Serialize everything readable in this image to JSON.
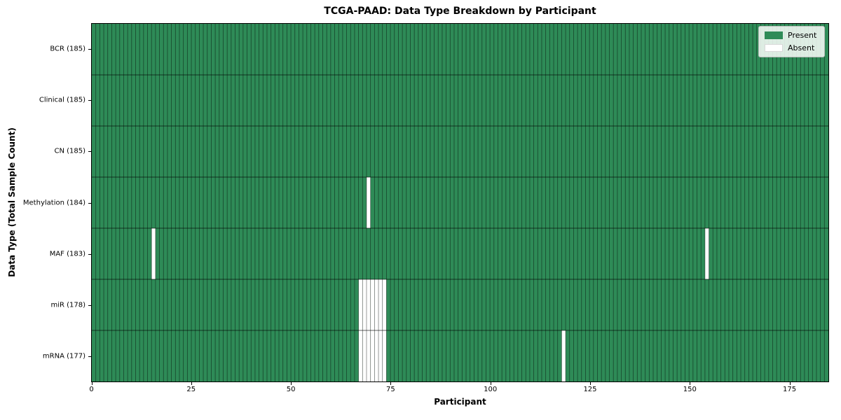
{
  "chart_data": {
    "type": "heatmap",
    "title": "TCGA-PAAD: Data Type Breakdown by Participant",
    "xlabel": "Participant",
    "ylabel": "Data Type (Total Sample Count)",
    "n_participants": 185,
    "x_range": [
      0,
      185
    ],
    "x_ticks": [
      0,
      25,
      50,
      75,
      100,
      125,
      150,
      175
    ],
    "grid": "cell-edges",
    "rows": [
      {
        "label": "BCR (185)",
        "data_type": "BCR",
        "present_count": 185,
        "absent_participants": []
      },
      {
        "label": "Clinical (185)",
        "data_type": "Clinical",
        "present_count": 185,
        "absent_participants": []
      },
      {
        "label": "CN (185)",
        "data_type": "CN",
        "present_count": 185,
        "absent_participants": []
      },
      {
        "label": "Methylation (184)",
        "data_type": "Methylation",
        "present_count": 184,
        "absent_participants": [
          69
        ]
      },
      {
        "label": "MAF (183)",
        "data_type": "MAF",
        "present_count": 183,
        "absent_participants": [
          15,
          154
        ]
      },
      {
        "label": "miR (178)",
        "data_type": "miR",
        "present_count": 178,
        "absent_participants": [
          67,
          68,
          69,
          70,
          71,
          72,
          73
        ]
      },
      {
        "label": "mRNA (177)",
        "data_type": "mRNA",
        "present_count": 177,
        "absent_participants": [
          67,
          68,
          69,
          70,
          71,
          72,
          73,
          118
        ]
      }
    ],
    "legend": {
      "position": "upper right",
      "entries": [
        {
          "label": "Present",
          "color_key": "present"
        },
        {
          "label": "Absent",
          "color_key": "absent"
        }
      ]
    }
  },
  "colors": {
    "present": "#2e8b57",
    "absent": "#ffffff",
    "cell_edge": "rgba(0,0,0,0.50)",
    "row_divider": "rgba(0,0,0,0.62)",
    "plot_border": "#000000",
    "tick": "#000000",
    "text": "#000000",
    "legend_bg": "rgba(252,254,252,0.85)",
    "legend_border": "#b9bcb9"
  }
}
